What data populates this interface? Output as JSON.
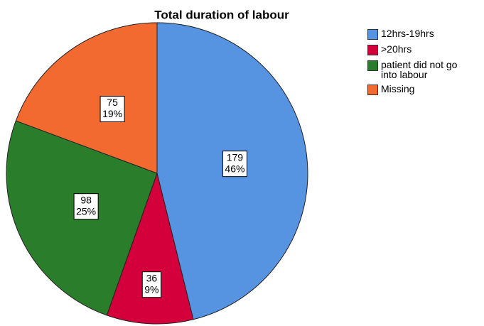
{
  "chart_data": {
    "type": "pie",
    "title": "Total duration of labour",
    "categories": [
      "12hrs-19hrs",
      ">20hrs",
      "patient did not go into labour",
      "Missing"
    ],
    "values": [
      179,
      36,
      98,
      75
    ],
    "percent_labels": [
      "46%",
      "9%",
      "25%",
      "19%"
    ],
    "colors": [
      "#5694e2",
      "#d3003c",
      "#2a7d2a",
      "#f26a30"
    ],
    "legend": "right"
  }
}
